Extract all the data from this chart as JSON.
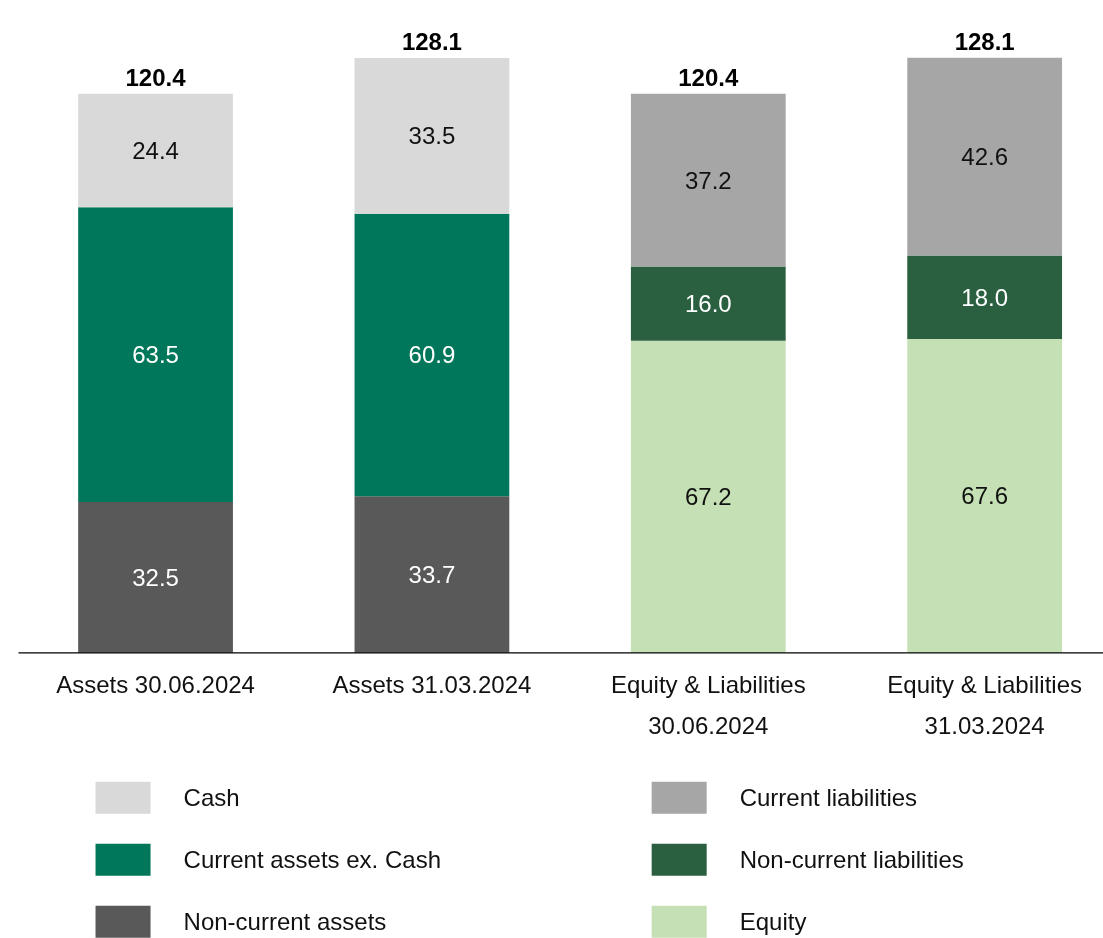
{
  "chart_data": {
    "type": "bar",
    "stacked": true,
    "legend": "bottom",
    "categories": [
      "Assets 30.06.2024",
      "Assets 31.03.2024",
      "Equity & Liabilities 30.06.2024",
      "Equity & Liabilities 31.03.2024"
    ],
    "series": [
      {
        "name": "Non-current assets",
        "color": "#595959",
        "values": [
          32.5,
          33.7,
          null,
          null
        ],
        "value_labels": [
          "32.5",
          "33.7",
          null,
          null
        ]
      },
      {
        "name": "Current assets ex. Cash",
        "color": "#00775a",
        "values": [
          63.5,
          60.9,
          null,
          null
        ],
        "value_labels": [
          "63.5",
          "60.9",
          null,
          null
        ]
      },
      {
        "name": "Cash",
        "color": "#d9d9d9",
        "values": [
          24.4,
          33.5,
          null,
          null
        ],
        "value_labels": [
          "24.4",
          "33.5",
          null,
          null
        ]
      },
      {
        "name": "Equity",
        "color": "#c5e0b4",
        "values": [
          null,
          null,
          67.2,
          67.6
        ],
        "value_labels": [
          null,
          null,
          "67.2",
          "67.6"
        ]
      },
      {
        "name": "Non-current liabilities",
        "color": "#2a6040",
        "values": [
          null,
          null,
          16.0,
          18.0
        ],
        "value_labels": [
          null,
          null,
          "16.0",
          "18.0"
        ]
      },
      {
        "name": "Current liabilities",
        "color": "#a6a6a6",
        "values": [
          null,
          null,
          37.2,
          42.6
        ],
        "value_labels": [
          null,
          null,
          "37.2",
          "42.6"
        ]
      }
    ],
    "totals": [
      "120.4",
      "128.1",
      "120.4",
      "128.1"
    ]
  }
}
